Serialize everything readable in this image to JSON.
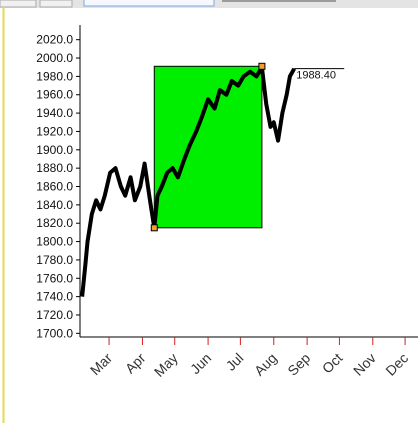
{
  "chart_data": {
    "type": "line",
    "x": [
      35,
      38,
      40,
      44,
      48,
      52,
      56,
      61,
      66,
      71,
      75,
      80,
      84,
      89,
      93,
      98,
      102,
      105,
      109,
      114,
      119,
      124,
      130,
      135,
      141,
      146,
      152,
      158,
      163,
      169,
      174,
      180,
      185,
      191,
      197,
      202,
      206,
      210,
      213,
      217,
      221,
      225,
      228,
      232
    ],
    "series": [
      {
        "color": "#000000",
        "values": [
          1740,
          1775,
          1800,
          1830,
          1845,
          1835,
          1850,
          1875,
          1880,
          1860,
          1850,
          1870,
          1845,
          1860,
          1885,
          1845,
          1815,
          1850,
          1860,
          1875,
          1880,
          1870,
          1890,
          1905,
          1920,
          1935,
          1955,
          1945,
          1965,
          1960,
          1975,
          1970,
          1980,
          1985,
          1980,
          1990,
          1950,
          1925,
          1930,
          1910,
          1940,
          1960,
          1980,
          1988.4
        ]
      }
    ],
    "last_value": {
      "value": 1988.4,
      "label": "1988.40"
    },
    "highlight": {
      "color": "#00ee00",
      "x": [
        102,
        202
      ],
      "y": [
        1815,
        1991
      ]
    },
    "xlim": [
      33,
      347
    ],
    "xticks": [
      {
        "value": 60,
        "label": "Mar"
      },
      {
        "value": 91,
        "label": "Apr"
      },
      {
        "value": 121,
        "label": "May"
      },
      {
        "value": 152,
        "label": "Jun"
      },
      {
        "value": 182,
        "label": "Jul"
      },
      {
        "value": 213,
        "label": "Aug"
      },
      {
        "value": 244,
        "label": "Sep"
      },
      {
        "value": 274,
        "label": "Oct"
      },
      {
        "value": 305,
        "label": "Nov"
      },
      {
        "value": 335,
        "label": "Dec"
      }
    ],
    "ylim": [
      1696,
      2036
    ],
    "yticks": [
      {
        "value": 1700,
        "label": "1700.0"
      },
      {
        "value": 1720,
        "label": "1720.0"
      },
      {
        "value": 1740,
        "label": "1740.0"
      },
      {
        "value": 1760,
        "label": "1760.0"
      },
      {
        "value": 1780,
        "label": "1780.0"
      },
      {
        "value": 1800,
        "label": "1800.0"
      },
      {
        "value": 1820,
        "label": "1820.0"
      },
      {
        "value": 1840,
        "label": "1840.0"
      },
      {
        "value": 1860,
        "label": "1860.0"
      },
      {
        "value": 1880,
        "label": "1880.0"
      },
      {
        "value": 1900,
        "label": "1900.0"
      },
      {
        "value": 1920,
        "label": "1920.0"
      },
      {
        "value": 1940,
        "label": "1940.0"
      },
      {
        "value": 1960,
        "label": "1960.0"
      },
      {
        "value": 1980,
        "label": "1980.0"
      },
      {
        "value": 2000,
        "label": "2000.0"
      },
      {
        "value": 2020,
        "label": "2020.0"
      }
    ]
  }
}
